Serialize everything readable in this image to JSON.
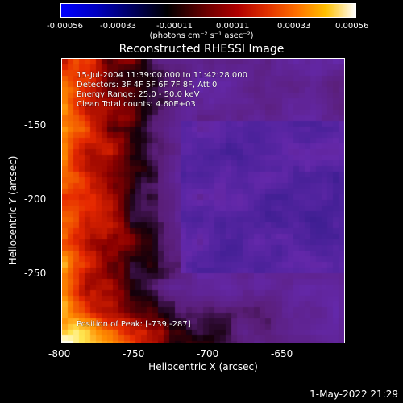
{
  "colorbar": {
    "ticks": [
      "-0.00056",
      "-0.00033",
      "-0.00011",
      "0.00011",
      "0.00033",
      "0.00056"
    ],
    "unit_label": "(photons cm⁻² s⁻¹ asec⁻²)",
    "colors": [
      "#0000ff",
      "#000000",
      "#b00000",
      "#ff7000",
      "#ffffff"
    ]
  },
  "plot": {
    "title": "Reconstructed RHESSI Image",
    "info_lines": [
      "15-Jul-2004 11:39:00.000 to 11:42:28.000",
      "Detectors: 3F 4F 5F 6F 7F 8F, Att 0",
      "Energy Range: 25.0 - 50.0 keV",
      "Clean     Total counts: 4.60E+03"
    ],
    "peak_label": "Position of Peak: [-739,-287]",
    "xlabel": "Heliocentric X (arcsec)",
    "ylabel": "Heliocentric Y (arcsec)",
    "xticks": [
      "-800",
      "-750",
      "-700",
      "-650"
    ],
    "yticks": [
      "-150",
      "-200",
      "-250"
    ]
  },
  "footer": {
    "date": "1-May-2022 21:29"
  }
}
